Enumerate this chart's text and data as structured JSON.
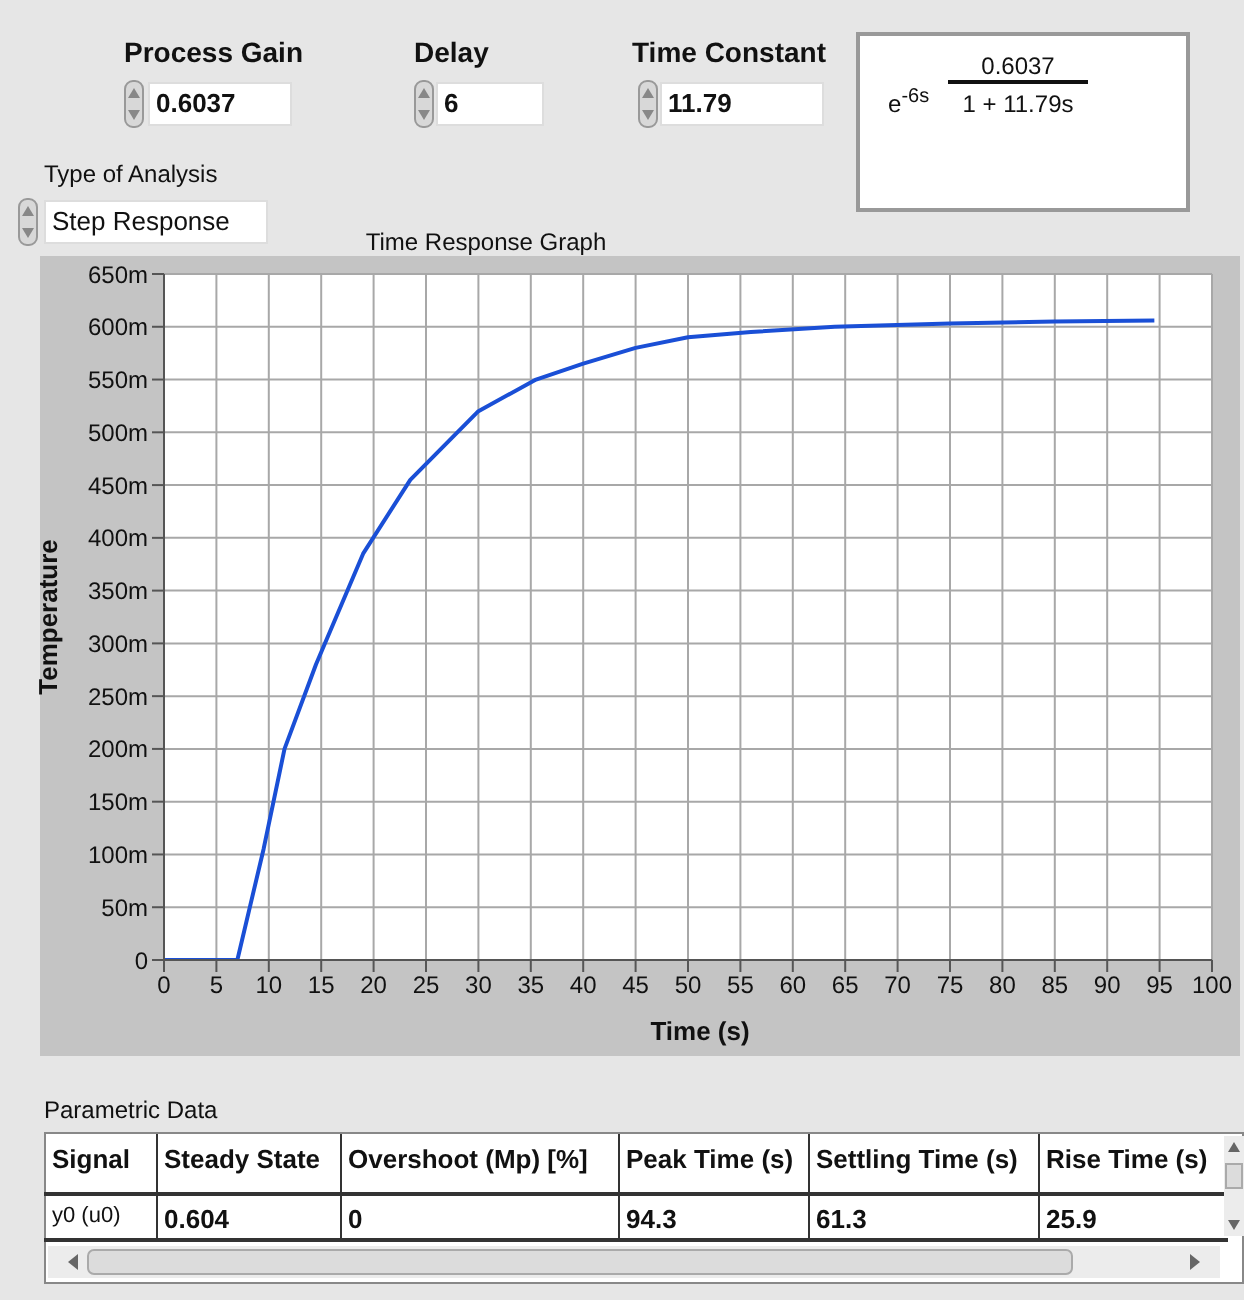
{
  "chart_data": {
    "type": "line",
    "title": "Time Response Graph",
    "xlabel": "Time (s)",
    "ylabel": "Temperature",
    "x": [
      0,
      7,
      9.5,
      11.5,
      14.5,
      19,
      23.5,
      30,
      35.5,
      40,
      45,
      50,
      56,
      64,
      75,
      85,
      94.5
    ],
    "series": [
      {
        "color": "#1a4fd6",
        "values": [
          0,
          0,
          105,
          200,
          280,
          385,
          455,
          520,
          550,
          565,
          580,
          590,
          595,
          600,
          603,
          605,
          606
        ]
      }
    ],
    "xlim": [
      0,
      100
    ],
    "xticks": [
      0,
      5,
      10,
      15,
      20,
      25,
      30,
      35,
      40,
      45,
      50,
      55,
      60,
      65,
      70,
      75,
      80,
      85,
      90,
      95,
      100
    ],
    "ylim": [
      0,
      650
    ],
    "yticks": [
      0,
      {
        "value": 50,
        "label": "50m"
      },
      {
        "value": 100,
        "label": "100m"
      },
      {
        "value": 150,
        "label": "150m"
      },
      {
        "value": 200,
        "label": "200m"
      },
      {
        "value": 250,
        "label": "250m"
      },
      {
        "value": 300,
        "label": "300m"
      },
      {
        "value": 350,
        "label": "350m"
      },
      {
        "value": 400,
        "label": "400m"
      },
      {
        "value": 450,
        "label": "450m"
      },
      {
        "value": 500,
        "label": "500m"
      },
      {
        "value": 550,
        "label": "550m"
      },
      {
        "value": 600,
        "label": "600m"
      },
      {
        "value": 650,
        "label": "650m"
      }
    ],
    "grid": true,
    "annotations": [
      "Process Gain",
      "0.6037",
      "Delay",
      "6",
      "Time Constant",
      "11.79",
      "e$^{-6s}$",
      "0.6037",
      "1 + 11.79s",
      "Type of Analysis",
      "Step Response",
      "Parametric Data",
      "Signal",
      "Steady State",
      "Overshoot (Mp) [%]",
      "Peak Time (s)",
      "Settling Time (s)",
      "Rise Time (s)",
      "y0 (u0)",
      "0.604",
      "0",
      "94.3",
      "61.3",
      "25.9"
    ]
  }
}
